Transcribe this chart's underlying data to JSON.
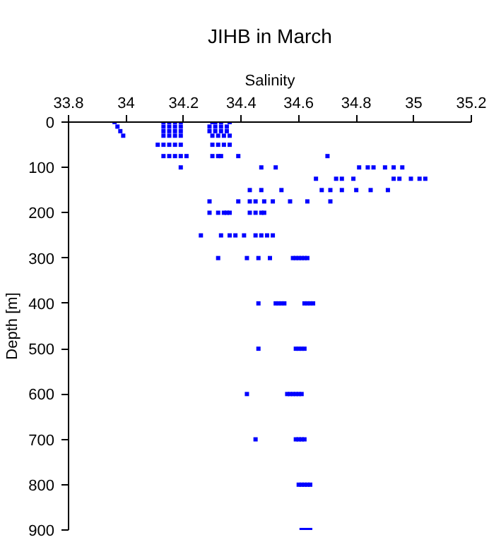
{
  "chart_data": {
    "type": "scatter",
    "title": "JIHB in March",
    "xlabel": "Salinity",
    "ylabel": "Depth [m]",
    "xlim": [
      33.8,
      35.2
    ],
    "xticks": [
      33.8,
      34,
      34.2,
      34.4,
      34.6,
      34.8,
      35,
      35.2
    ],
    "ylim": [
      900,
      0
    ],
    "yticks": [
      0,
      100,
      200,
      300,
      400,
      500,
      600,
      700,
      800,
      900
    ],
    "grid": false,
    "marker": "square",
    "series": [
      {
        "color": "#0000ff",
        "x": [
          33.96,
          34.13,
          34.15,
          34.17,
          34.19,
          34.3,
          34.31,
          34.33,
          34.36,
          33.97,
          34.13,
          34.15,
          34.17,
          34.19,
          34.29,
          34.31,
          34.33,
          34.35,
          33.98,
          34.13,
          34.15,
          34.17,
          34.19,
          34.29,
          34.31,
          34.33,
          34.35,
          33.99,
          34.13,
          34.15,
          34.17,
          34.19,
          34.3,
          34.32,
          34.34,
          34.36,
          34.11,
          34.13,
          34.15,
          34.17,
          34.19,
          34.3,
          34.32,
          34.34,
          34.36,
          34.13,
          34.15,
          34.17,
          34.19,
          34.21,
          34.3,
          34.32,
          34.33,
          34.39,
          34.7,
          34.19,
          34.47,
          34.52,
          34.81,
          34.84,
          34.86,
          34.9,
          34.93,
          34.96,
          34.66,
          34.73,
          34.75,
          34.79,
          34.93,
          34.95,
          34.99,
          35.02,
          35.04,
          34.43,
          34.47,
          34.54,
          34.68,
          34.71,
          34.75,
          34.8,
          34.85,
          34.91,
          34.29,
          34.39,
          34.43,
          34.45,
          34.48,
          34.51,
          34.57,
          34.63,
          34.71,
          34.29,
          34.32,
          34.34,
          34.35,
          34.36,
          34.43,
          34.45,
          34.47,
          34.48,
          34.26,
          34.33,
          34.36,
          34.38,
          34.41,
          34.45,
          34.47,
          34.49,
          34.51,
          34.32,
          34.42,
          34.46,
          34.5,
          34.58,
          34.59,
          34.6,
          34.61,
          34.62,
          34.63,
          34.46,
          34.52,
          34.53,
          34.54,
          34.55,
          34.62,
          34.63,
          34.64,
          34.65,
          34.46,
          34.59,
          34.6,
          34.61,
          34.62,
          34.42,
          34.56,
          34.57,
          34.58,
          34.59,
          34.6,
          34.61,
          34.45,
          34.59,
          34.6,
          34.61,
          34.62,
          34.6,
          34.61,
          34.62,
          34.63,
          34.64,
          34.61,
          34.62,
          34.63,
          34.64
        ],
        "values": [
          0,
          0,
          0,
          0,
          0,
          0,
          0,
          0,
          0,
          10,
          10,
          10,
          10,
          10,
          10,
          10,
          10,
          10,
          20,
          20,
          20,
          20,
          20,
          20,
          20,
          20,
          20,
          30,
          30,
          30,
          30,
          30,
          30,
          30,
          30,
          30,
          50,
          50,
          50,
          50,
          50,
          50,
          50,
          50,
          50,
          75,
          75,
          75,
          75,
          75,
          75,
          75,
          75,
          75,
          75,
          100,
          100,
          100,
          100,
          100,
          100,
          100,
          100,
          100,
          125,
          125,
          125,
          125,
          125,
          125,
          125,
          125,
          125,
          150,
          150,
          150,
          150,
          150,
          150,
          150,
          150,
          150,
          175,
          175,
          175,
          175,
          175,
          175,
          175,
          175,
          175,
          200,
          200,
          200,
          200,
          200,
          200,
          200,
          200,
          200,
          250,
          250,
          250,
          250,
          250,
          250,
          250,
          250,
          250,
          300,
          300,
          300,
          300,
          300,
          300,
          300,
          300,
          300,
          300,
          400,
          400,
          400,
          400,
          400,
          400,
          400,
          400,
          400,
          500,
          500,
          500,
          500,
          500,
          600,
          600,
          600,
          600,
          600,
          600,
          600,
          700,
          700,
          700,
          700,
          700,
          800,
          800,
          800,
          800,
          800,
          900,
          900,
          900,
          900
        ]
      }
    ]
  }
}
